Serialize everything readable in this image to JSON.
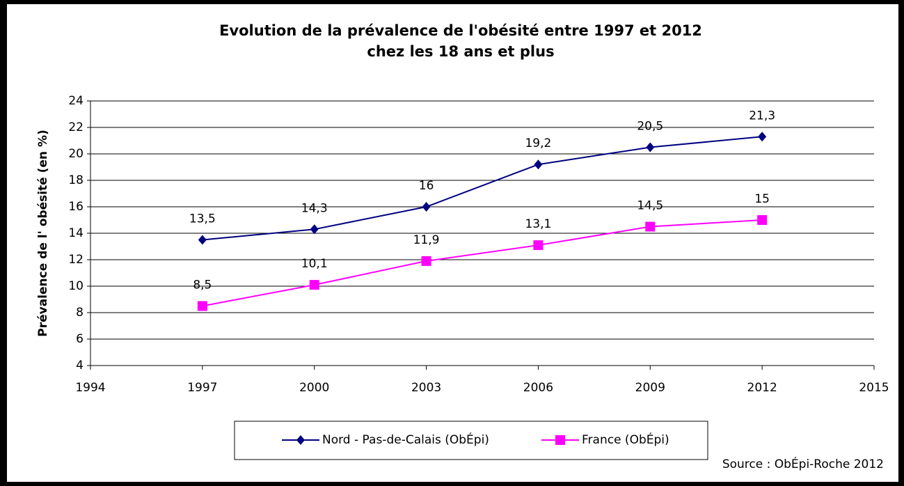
{
  "chart_data": {
    "type": "line",
    "title": "Evolution de la prévalence de l'obésité entre 1997 et 2012",
    "subtitle": "chez les 18 ans et plus",
    "y_label": "Prévalence de l' obésité (en %)",
    "source": "Source : ObÉpi-Roche 2012",
    "x": [
      1997,
      2000,
      2003,
      2006,
      2009,
      2012
    ],
    "series": [
      {
        "name": "Nord - Pas-de-Calais (ObÉpi)",
        "color": "#000080",
        "marker": "diamond",
        "values": [
          13.5,
          14.3,
          16,
          19.2,
          20.5,
          21.3
        ],
        "value_labels": [
          "13,5",
          "14,3",
          "16",
          "19,2",
          "20,5",
          "21,3"
        ]
      },
      {
        "name": "France (ObÉpi)",
        "color": "#ff00ff",
        "marker": "square",
        "values": [
          8.5,
          10.1,
          11.9,
          13.1,
          14.5,
          15
        ],
        "value_labels": [
          "8,5",
          "10,1",
          "11,9",
          "13,1",
          "14,5",
          "15"
        ]
      }
    ],
    "xlim": [
      1994,
      2015
    ],
    "xticks": [
      1994,
      1997,
      2000,
      2003,
      2006,
      2009,
      2012,
      2015
    ],
    "ylim": [
      4,
      24
    ],
    "yticks": [
      4,
      6,
      8,
      10,
      12,
      14,
      16,
      18,
      20,
      22,
      24
    ],
    "grid": true,
    "legend": "bottom"
  }
}
